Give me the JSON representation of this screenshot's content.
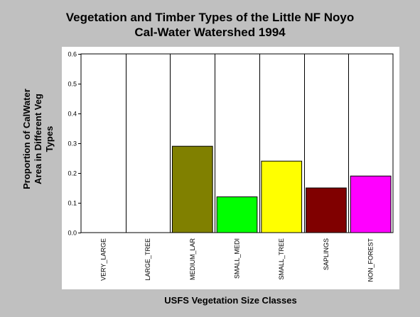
{
  "chart_data": {
    "type": "bar",
    "title_lines": [
      "Vegetation and Timber Types of the Little NF Noyo",
      "Cal-Water Watershed 1994"
    ],
    "xlabel": "USFS Vegetation Size Classes",
    "ylabel_lines": [
      "Proportion of CalWater",
      "Area in Different Veg",
      "Types"
    ],
    "categories": [
      "VERY_LARGE",
      "LARGE_TREE",
      "MEDIUM_LAR",
      "SMALL_MEDI",
      "SMALL_TREE",
      "SAPLINGS",
      "NON_FOREST"
    ],
    "values": [
      0.0,
      0.0,
      0.29,
      0.12,
      0.24,
      0.15,
      0.19
    ],
    "colors": [
      "#808000",
      "#808000",
      "#808000",
      "#00ff00",
      "#ffff00",
      "#800000",
      "#ff00ff"
    ],
    "ylim": [
      0,
      0.6
    ],
    "yticks": [
      "0.0",
      "0.1",
      "0.2",
      "0.3",
      "0.4",
      "0.5",
      "0.6"
    ],
    "grid": "vertical category separators",
    "legend": "none"
  }
}
